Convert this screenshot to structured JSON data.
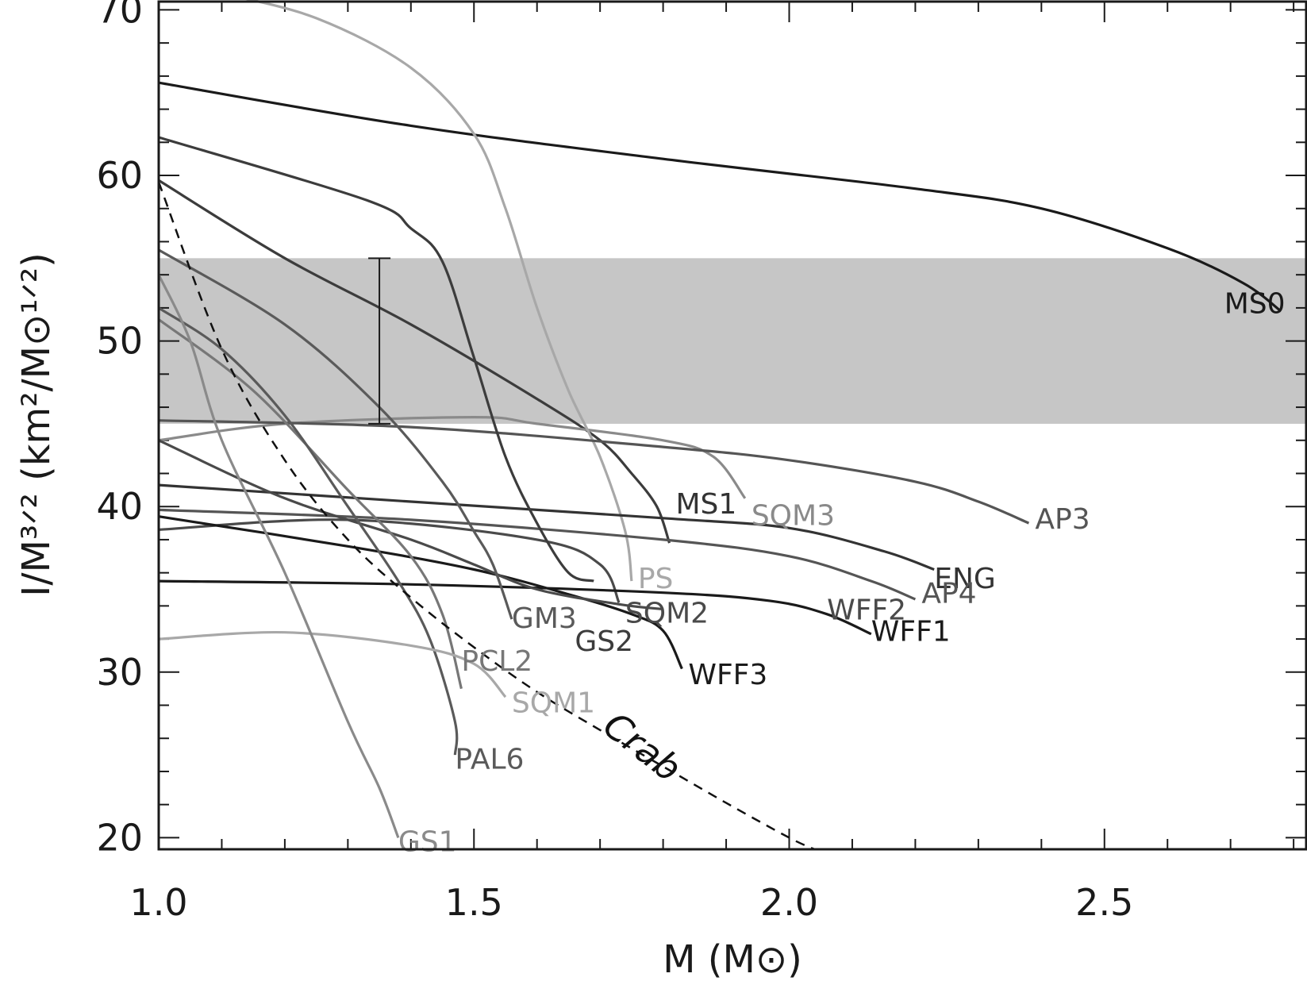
{
  "chart_data": {
    "type": "line",
    "xlabel": "M  (M⊙)",
    "ylabel": "I/M³ᐟ²  (km²/M⊙¹ᐟ²)",
    "xlim": [
      1.0,
      2.82
    ],
    "ylim": [
      19.3,
      70.5
    ],
    "x_ticks": [
      "1.0",
      "1.5",
      "2.0",
      "2.5"
    ],
    "y_ticks": [
      "20",
      "30",
      "40",
      "50",
      "60",
      "70"
    ],
    "band": {
      "y_min": 45.0,
      "y_max": 55.0,
      "color": "#c6c6c6"
    },
    "error_bar": {
      "x": 1.35,
      "y_low": 45.0,
      "y_high": 55.0
    },
    "crab": {
      "label": "Crab",
      "points": [
        [
          1.0,
          59.6
        ],
        [
          1.1,
          49.5
        ],
        [
          1.2,
          42.8
        ],
        [
          1.3,
          38.0
        ],
        [
          1.4,
          34.5
        ],
        [
          1.5,
          31.5
        ],
        [
          1.6,
          28.8
        ],
        [
          1.7,
          26.5
        ],
        [
          1.8,
          24.3
        ],
        [
          1.9,
          22.1
        ],
        [
          2.0,
          20.0
        ],
        [
          2.04,
          19.3
        ]
      ]
    },
    "series": [
      {
        "name": "MS0",
        "color": "#1a1a1a",
        "points": [
          [
            1.0,
            65.6
          ],
          [
            1.4,
            63.0
          ],
          [
            1.8,
            61.0
          ],
          [
            2.2,
            59.2
          ],
          [
            2.4,
            58.0
          ],
          [
            2.6,
            55.6
          ],
          [
            2.72,
            53.5
          ],
          [
            2.78,
            51.8
          ]
        ]
      },
      {
        "name": "MS1",
        "color": "#3c3c3c",
        "points": [
          [
            1.0,
            59.7
          ],
          [
            1.2,
            55.0
          ],
          [
            1.4,
            51.0
          ],
          [
            1.6,
            46.5
          ],
          [
            1.7,
            44.0
          ],
          [
            1.75,
            42.0
          ],
          [
            1.79,
            40.0
          ],
          [
            1.81,
            37.8
          ]
        ]
      },
      {
        "name": "SQM3",
        "color": "#8a8a8a",
        "points": [
          [
            1.0,
            44.0
          ],
          [
            1.2,
            45.0
          ],
          [
            1.5,
            45.4
          ],
          [
            1.6,
            45.0
          ],
          [
            1.8,
            44.0
          ],
          [
            1.88,
            43.0
          ],
          [
            1.93,
            40.5
          ]
        ]
      },
      {
        "name": "PS",
        "color": "#a8a8a8",
        "points": [
          [
            1.1,
            71.0
          ],
          [
            1.25,
            69.5
          ],
          [
            1.4,
            66.5
          ],
          [
            1.5,
            62.5
          ],
          [
            1.55,
            58.0
          ],
          [
            1.6,
            52.0
          ],
          [
            1.65,
            47.0
          ],
          [
            1.7,
            43.0
          ],
          [
            1.74,
            38.5
          ],
          [
            1.75,
            35.5
          ]
        ]
      },
      {
        "name": "AP3",
        "color": "#555555",
        "points": [
          [
            1.0,
            45.2
          ],
          [
            1.4,
            44.8
          ],
          [
            1.8,
            43.6
          ],
          [
            2.0,
            42.8
          ],
          [
            2.2,
            41.5
          ],
          [
            2.3,
            40.3
          ],
          [
            2.38,
            39.0
          ]
        ]
      },
      {
        "name": "ENG",
        "color": "#333333",
        "points": [
          [
            1.0,
            41.3
          ],
          [
            1.4,
            40.3
          ],
          [
            1.8,
            39.3
          ],
          [
            2.0,
            38.7
          ],
          [
            2.15,
            37.3
          ],
          [
            2.23,
            36.2
          ]
        ]
      },
      {
        "name": "AP4",
        "color": "#555555",
        "points": [
          [
            1.0,
            39.8
          ],
          [
            1.4,
            39.2
          ],
          [
            1.8,
            38.0
          ],
          [
            2.0,
            37.0
          ],
          [
            2.13,
            35.5
          ],
          [
            2.2,
            34.4
          ]
        ]
      },
      {
        "name": "WFF2",
        "color": "#4a4a4a",
        "points": [
          [
            1.0,
            38.6
          ],
          [
            1.3,
            39.2
          ],
          [
            1.6,
            38.0
          ],
          [
            1.7,
            36.5
          ],
          [
            1.73,
            34.2
          ]
        ]
      },
      {
        "name": "WFF1",
        "color": "#1a1a1a",
        "points": [
          [
            1.0,
            35.5
          ],
          [
            1.4,
            35.3
          ],
          [
            1.8,
            34.8
          ],
          [
            1.97,
            34.3
          ],
          [
            2.06,
            33.5
          ],
          [
            2.13,
            32.3
          ]
        ]
      },
      {
        "name": "WFF3",
        "color": "#1a1a1a",
        "points": [
          [
            1.0,
            39.4
          ],
          [
            1.3,
            37.6
          ],
          [
            1.5,
            36.2
          ],
          [
            1.65,
            34.7
          ],
          [
            1.75,
            33.5
          ],
          [
            1.8,
            32.5
          ],
          [
            1.83,
            30.2
          ]
        ]
      },
      {
        "name": "SQM2",
        "color": "#4a4a4a",
        "points": [
          [
            1.0,
            44.0
          ],
          [
            1.2,
            40.5
          ],
          [
            1.4,
            38.0
          ],
          [
            1.5,
            36.5
          ],
          [
            1.6,
            35.0
          ],
          [
            1.73,
            34.1
          ],
          [
            1.8,
            33.8
          ]
        ]
      },
      {
        "name": "GS2",
        "color": "#3c3c3c",
        "points": [
          [
            1.0,
            62.3
          ],
          [
            1.33,
            58.5
          ],
          [
            1.4,
            56.8
          ],
          [
            1.45,
            54.8
          ],
          [
            1.5,
            49.0
          ],
          [
            1.55,
            43.0
          ],
          [
            1.6,
            39.0
          ],
          [
            1.65,
            36.0
          ],
          [
            1.69,
            35.5
          ]
        ]
      },
      {
        "name": "GM3",
        "color": "#5a5a5a",
        "points": [
          [
            1.0,
            55.5
          ],
          [
            1.2,
            51.0
          ],
          [
            1.35,
            46.0
          ],
          [
            1.45,
            41.5
          ],
          [
            1.5,
            38.5
          ],
          [
            1.53,
            36.5
          ],
          [
            1.56,
            33.2
          ]
        ]
      },
      {
        "name": "PCL2",
        "color": "#777777",
        "points": [
          [
            1.0,
            51.3
          ],
          [
            1.15,
            47.0
          ],
          [
            1.3,
            41.0
          ],
          [
            1.4,
            37.0
          ],
          [
            1.45,
            33.5
          ],
          [
            1.48,
            29.0
          ]
        ]
      },
      {
        "name": "PAL6",
        "color": "#5a5a5a",
        "points": [
          [
            1.0,
            52.0
          ],
          [
            1.1,
            49.5
          ],
          [
            1.2,
            45.5
          ],
          [
            1.3,
            40.0
          ],
          [
            1.38,
            35.5
          ],
          [
            1.43,
            32.0
          ],
          [
            1.47,
            27.0
          ],
          [
            1.47,
            25.0
          ]
        ]
      },
      {
        "name": "SQM1",
        "color": "#a8a8a8",
        "points": [
          [
            1.0,
            32.0
          ],
          [
            1.2,
            32.4
          ],
          [
            1.4,
            31.6
          ],
          [
            1.5,
            30.5
          ],
          [
            1.55,
            28.5
          ]
        ]
      },
      {
        "name": "GS1",
        "color": "#8a8a8a",
        "points": [
          [
            1.0,
            54.0
          ],
          [
            1.05,
            50.0
          ],
          [
            1.1,
            44.0
          ],
          [
            1.2,
            36.0
          ],
          [
            1.3,
            27.0
          ],
          [
            1.35,
            23.0
          ],
          [
            1.38,
            20.0
          ]
        ]
      }
    ],
    "labels": [
      {
        "text": "MS0",
        "x": 2.69,
        "y": 52.3,
        "color": "#1a1a1a"
      },
      {
        "text": "MS1",
        "x": 1.82,
        "y": 40.2,
        "color": "#333333"
      },
      {
        "text": "SQM3",
        "x": 1.94,
        "y": 39.5,
        "color": "#8a8a8a"
      },
      {
        "text": "AP3",
        "x": 2.39,
        "y": 39.3,
        "color": "#555555"
      },
      {
        "text": "PS",
        "x": 1.76,
        "y": 35.7,
        "color": "#a8a8a8"
      },
      {
        "text": "ENG",
        "x": 2.23,
        "y": 35.7,
        "color": "#333333"
      },
      {
        "text": "AP4",
        "x": 2.21,
        "y": 34.8,
        "color": "#555555"
      },
      {
        "text": "WFF2",
        "x": 2.06,
        "y": 33.8,
        "color": "#4a4a4a"
      },
      {
        "text": "WFF1",
        "x": 2.13,
        "y": 32.5,
        "color": "#1a1a1a"
      },
      {
        "text": "SQM2",
        "x": 1.74,
        "y": 33.6,
        "color": "#4a4a4a"
      },
      {
        "text": "GM3",
        "x": 1.56,
        "y": 33.3,
        "color": "#5a5a5a"
      },
      {
        "text": "GS2",
        "x": 1.66,
        "y": 31.9,
        "color": "#3c3c3c"
      },
      {
        "text": "PCL2",
        "x": 1.48,
        "y": 30.7,
        "color": "#777777"
      },
      {
        "text": "WFF3",
        "x": 1.84,
        "y": 29.9,
        "color": "#1a1a1a"
      },
      {
        "text": "SQM1",
        "x": 1.56,
        "y": 28.2,
        "color": "#a8a8a8"
      },
      {
        "text": "PAL6",
        "x": 1.47,
        "y": 24.8,
        "color": "#5a5a5a"
      },
      {
        "text": "GS1",
        "x": 1.38,
        "y": 19.8,
        "color": "#8a8a8a"
      }
    ]
  }
}
